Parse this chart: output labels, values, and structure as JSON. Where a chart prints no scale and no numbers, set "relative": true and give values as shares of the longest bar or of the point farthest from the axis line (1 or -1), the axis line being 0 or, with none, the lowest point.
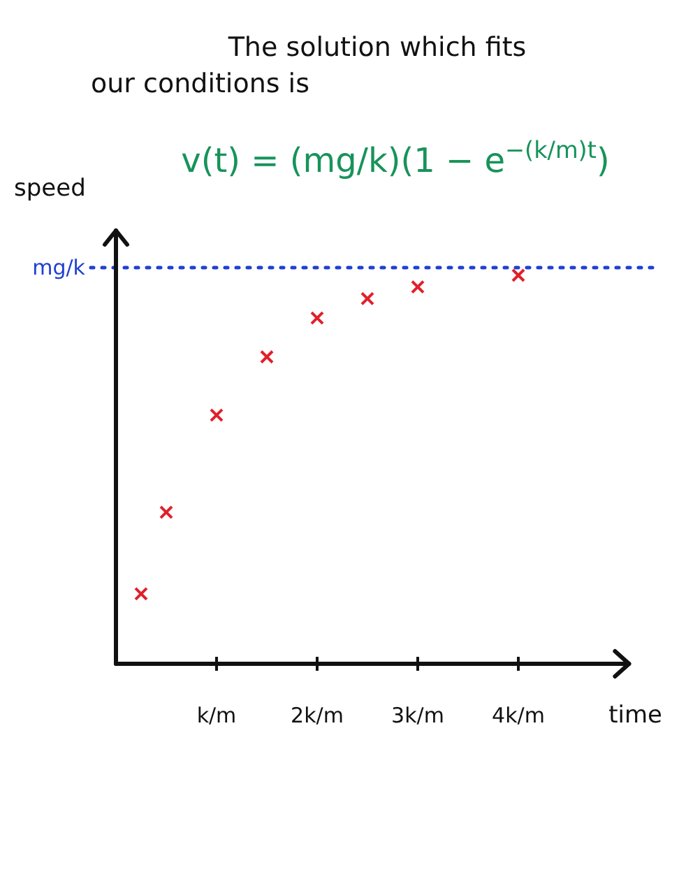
{
  "chart_data": {
    "type": "scatter",
    "title": "The solution which fits our conditions is",
    "annotations": [
      "v(t) = (mg/k)(1 − e$^{−(k/m)t}$)"
    ],
    "xlabel": "time",
    "ylabel": "speed",
    "relative": true,
    "x": [
      0.25,
      0.5,
      1,
      1.5,
      2,
      2.5,
      3,
      4
    ],
    "series": [
      {
        "color": "#e0202a",
        "values": [
          0.18,
          0.39,
          0.64,
          0.79,
          0.89,
          0.94,
          0.97,
          1
        ]
      }
    ],
    "marker": "cross",
    "xlim": [
      0,
      5.1
    ],
    "xticks": [
      {
        "value": 1,
        "label": "k/m"
      },
      {
        "value": 2,
        "label": "2k/m"
      },
      {
        "value": 3,
        "label": "3k/m"
      },
      {
        "value": 4,
        "label": "4k/m"
      }
    ],
    "ref_lines": [
      {
        "axis": "y",
        "value": 1.02,
        "label": "mg/k",
        "color": "#2040d0",
        "line_style": "dotted"
      }
    ]
  }
}
